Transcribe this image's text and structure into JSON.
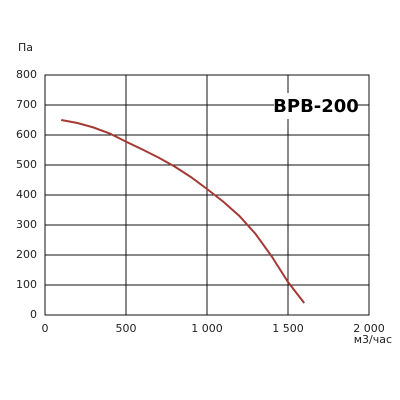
{
  "chart_data": {
    "type": "line",
    "y_label": "Па",
    "x_label": "м3/час",
    "annotation": "ВРВ-200",
    "x": [
      100,
      200,
      300,
      400,
      500,
      600,
      700,
      800,
      900,
      1000,
      1100,
      1200,
      1300,
      1400,
      1500,
      1600
    ],
    "series": [
      {
        "color": "#a33a36",
        "values": [
          650,
          640,
          625,
          605,
          578,
          552,
          525,
          495,
          460,
          420,
          378,
          330,
          270,
          195,
          110,
          40
        ]
      }
    ],
    "xlim": [
      0,
      2000
    ],
    "xticks": [
      0,
      500,
      {
        "value": 1000,
        "label": "1 000"
      },
      {
        "value": 1500,
        "label": "1 500"
      },
      {
        "value": 2000,
        "label": "2 000"
      }
    ],
    "ylim": [
      0,
      800
    ],
    "yticks": [
      0,
      100,
      200,
      300,
      400,
      500,
      600,
      700,
      800
    ],
    "grid": true
  }
}
